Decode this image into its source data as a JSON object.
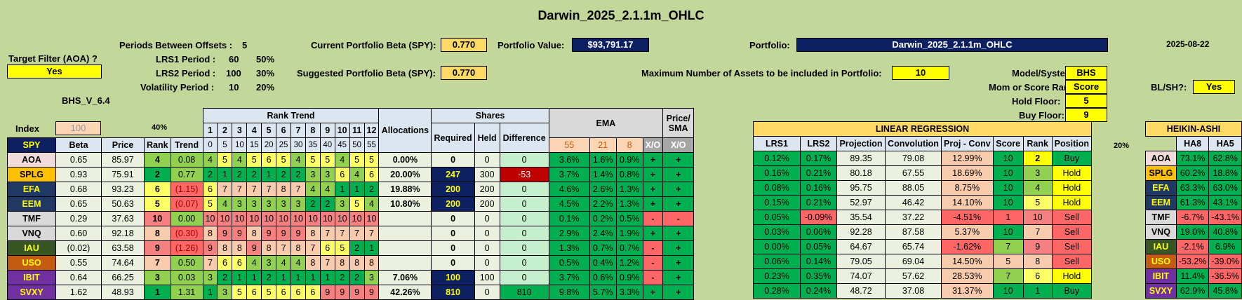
{
  "title": "Darwin_2025_2.1.1m_OHLC",
  "date": "2025-08-22",
  "version": "BHS_V_6.4",
  "target_filter": {
    "label": "Target Filter (AOA) ?",
    "value": "Yes"
  },
  "params": {
    "periods_between_offsets_label": "Periods Between Offsets :",
    "periods_between_offsets": "5",
    "lrs1_label": "LRS1 Period :",
    "lrs1_period": "60",
    "lrs1_pct": "50%",
    "lrs2_label": "LRS2 Period :",
    "lrs2_period": "100",
    "lrs2_pct": "30%",
    "vol_label": "Volatility Period :",
    "vol_period": "10",
    "vol_pct": "20%"
  },
  "beta": {
    "current_label": "Current Portfolio Beta (SPY):",
    "current": "0.770",
    "suggested_label": "Suggested Portfolio Beta (SPY):",
    "suggested": "0.770"
  },
  "portfolio_value": {
    "label": "Portfolio Value:",
    "value": "$93,791.17"
  },
  "portfolio": {
    "label": "Portfolio:",
    "value": "Darwin_2025_2.1.1m_OHLC"
  },
  "max_assets": {
    "label": "Maximum Number of Assets to be included in Portfolio:",
    "value": "10"
  },
  "settings": {
    "model_label": "Model/System?:",
    "model": "BHS",
    "rank_label": "Mom or Score Rank?:",
    "rank": "Score",
    "hold_label": "Hold Floor:",
    "hold": "5",
    "buy_label": "Buy Floor:",
    "buy": "9",
    "blsh_label": "BL/SH?:",
    "blsh": "Yes"
  },
  "headers": {
    "index": "Index",
    "index_val": "100",
    "pct40": "40%",
    "rank_trend": "Rank Trend",
    "allocations": "Allocations",
    "shares": "Shares",
    "required": "Required",
    "held": "Held",
    "difference": "Difference",
    "ema": "EMA",
    "price_sma": "Price/ SMA",
    "linreg": "LINEAR REGRESSION",
    "heikin": "HEIKIN-ASHI",
    "spy": "SPY",
    "beta": "Beta",
    "price": "Price",
    "rank": "Rank",
    "trend": "Trend",
    "ema55": "55",
    "ema21": "21",
    "ema8": "8",
    "xo": "X/O",
    "lrs1": "LRS1",
    "lrs2": "LRS2",
    "projection": "Projection",
    "convolution": "Convolution",
    "projconv": "Proj - Conv",
    "score": "Score",
    "position": "Position",
    "pct20": "20%",
    "ha8": "HA8",
    "ha5": "HA5",
    "rt_nums": [
      "1",
      "2",
      "3",
      "4",
      "5",
      "6",
      "7",
      "8",
      "9",
      "10",
      "11",
      "12"
    ],
    "rt_offsets": [
      "0",
      "5",
      "10",
      "15",
      "20",
      "25",
      "30",
      "35",
      "40",
      "45",
      "50",
      "55"
    ]
  },
  "rows": [
    {
      "sym": "AOA",
      "beta": "0.65",
      "price": "85.97",
      "rank": "4",
      "trend": "0.08",
      "rt": [
        "4",
        "5",
        "4",
        "5",
        "6",
        "5",
        "4",
        "5",
        "5",
        "4",
        "5",
        "5"
      ],
      "alloc": "0.00%",
      "req": "0",
      "held": "0",
      "diff": "0",
      "e55": "3.6%",
      "e21": "1.6%",
      "e8": "0.9%",
      "xo1": "+",
      "xo2": "+",
      "lrs1": "0.12%",
      "lrs2": "0.17%",
      "proj": "89.35",
      "conv": "79.08",
      "pc": "12.99%",
      "score": "10",
      "rk": "2",
      "pos": "Buy",
      "ha8": "73.1%",
      "ha5": "62.8%"
    },
    {
      "sym": "SPLG",
      "beta": "0.93",
      "price": "75.91",
      "rank": "2",
      "trend": "0.77",
      "rt": [
        "2",
        "1",
        "2",
        "2",
        "1",
        "2",
        "2",
        "3",
        "3",
        "6",
        "4",
        "6"
      ],
      "alloc": "20.00%",
      "req": "247",
      "held": "300",
      "diff": "-53",
      "e55": "3.7%",
      "e21": "1.4%",
      "e8": "0.8%",
      "xo1": "+",
      "xo2": "+",
      "lrs1": "0.16%",
      "lrs2": "0.21%",
      "proj": "80.18",
      "conv": "67.55",
      "pc": "18.69%",
      "score": "10",
      "rk": "3",
      "pos": "Hold",
      "ha8": "60.2%",
      "ha5": "18.8%"
    },
    {
      "sym": "EFA",
      "beta": "0.68",
      "price": "93.23",
      "rank": "6",
      "trend": "(1.15)",
      "rt": [
        "6",
        "7",
        "7",
        "7",
        "7",
        "8",
        "7",
        "4",
        "4",
        "1",
        "1",
        "2"
      ],
      "alloc": "19.88%",
      "req": "200",
      "held": "200",
      "diff": "0",
      "e55": "4.6%",
      "e21": "2.6%",
      "e8": "1.3%",
      "xo1": "+",
      "xo2": "+",
      "lrs1": "0.08%",
      "lrs2": "0.16%",
      "proj": "95.75",
      "conv": "88.05",
      "pc": "8.75%",
      "score": "10",
      "rk": "4",
      "pos": "Hold",
      "ha8": "63.3%",
      "ha5": "63.0%"
    },
    {
      "sym": "EEM",
      "beta": "0.65",
      "price": "50.63",
      "rank": "5",
      "trend": "(0.07)",
      "rt": [
        "5",
        "4",
        "3",
        "3",
        "3",
        "3",
        "3",
        "2",
        "2",
        "3",
        "5",
        "4"
      ],
      "alloc": "10.80%",
      "req": "200",
      "held": "200",
      "diff": "0",
      "e55": "4.5%",
      "e21": "2.2%",
      "e8": "1.3%",
      "xo1": "+",
      "xo2": "+",
      "lrs1": "0.15%",
      "lrs2": "0.21%",
      "proj": "52.97",
      "conv": "46.42",
      "pc": "14.10%",
      "score": "10",
      "rk": "5",
      "pos": "Hold",
      "ha8": "61.3%",
      "ha5": "43.1%"
    },
    {
      "sym": "TMF",
      "beta": "0.29",
      "price": "37.63",
      "rank": "10",
      "trend": "0.00",
      "rt": [
        "10",
        "10",
        "10",
        "10",
        "10",
        "10",
        "10",
        "10",
        "10",
        "10",
        "10",
        "10"
      ],
      "alloc": "",
      "req": "0",
      "held": "0",
      "diff": "0",
      "e55": "0.1%",
      "e21": "0.2%",
      "e8": "0.5%",
      "xo1": "-",
      "xo2": "-",
      "lrs1": "0.05%",
      "lrs2": "-0.09%",
      "proj": "35.54",
      "conv": "37.22",
      "pc": "-4.51%",
      "score": "1",
      "rk": "10",
      "pos": "Sell",
      "ha8": "-6.7%",
      "ha5": "-43.1%"
    },
    {
      "sym": "VNQ",
      "beta": "0.60",
      "price": "92.18",
      "rank": "8",
      "trend": "(0.30)",
      "rt": [
        "8",
        "9",
        "9",
        "8",
        "9",
        "9",
        "9",
        "8",
        "7",
        "7",
        "7",
        "7"
      ],
      "alloc": "",
      "req": "0",
      "held": "0",
      "diff": "0",
      "e55": "2.9%",
      "e21": "2.4%",
      "e8": "1.9%",
      "xo1": "+",
      "xo2": "+",
      "lrs1": "0.03%",
      "lrs2": "0.06%",
      "proj": "92.28",
      "conv": "87.58",
      "pc": "5.37%",
      "score": "10",
      "rk": "7",
      "pos": "Sell",
      "ha8": "19.0%",
      "ha5": "40.8%"
    },
    {
      "sym": "IAU",
      "beta": "(0.02)",
      "price": "63.58",
      "rank": "9",
      "trend": "(1.26)",
      "rt": [
        "9",
        "8",
        "8",
        "9",
        "8",
        "7",
        "8",
        "7",
        "6",
        "5",
        "2",
        "1"
      ],
      "alloc": "",
      "req": "0",
      "held": "0",
      "diff": "0",
      "e55": "1.3%",
      "e21": "0.7%",
      "e8": "0.7%",
      "xo1": "-",
      "xo2": "+",
      "lrs1": "0.00%",
      "lrs2": "0.05%",
      "proj": "64.67",
      "conv": "65.74",
      "pc": "-1.62%",
      "score": "7",
      "rk": "9",
      "pos": "Sell",
      "ha8": "-2.1%",
      "ha5": "6.9%"
    },
    {
      "sym": "USO",
      "beta": "0.55",
      "price": "74.64",
      "rank": "7",
      "trend": "0.50",
      "rt": [
        "7",
        "6",
        "6",
        "4",
        "3",
        "4",
        "4",
        "8",
        "7",
        "8",
        "8",
        "8"
      ],
      "alloc": "",
      "req": "0",
      "held": "0",
      "diff": "0",
      "e55": "0.5%",
      "e21": "0.4%",
      "e8": "1.2%",
      "xo1": "-",
      "xo2": "+",
      "lrs1": "0.06%",
      "lrs2": "0.14%",
      "proj": "79.05",
      "conv": "69.04",
      "pc": "14.50%",
      "score": "5",
      "rk": "8",
      "pos": "Sell",
      "ha8": "-53.2%",
      "ha5": "-39.0%"
    },
    {
      "sym": "IBIT",
      "beta": "0.64",
      "price": "66.25",
      "rank": "3",
      "trend": "0.03",
      "rt": [
        "3",
        "2",
        "1",
        "1",
        "2",
        "1",
        "1",
        "1",
        "1",
        "2",
        "2",
        "3"
      ],
      "alloc": "7.06%",
      "req": "100",
      "held": "100",
      "diff": "0",
      "e55": "3.7%",
      "e21": "0.6%",
      "e8": "0.9%",
      "xo1": "-",
      "xo2": "+",
      "lrs1": "0.23%",
      "lrs2": "0.35%",
      "proj": "74.07",
      "conv": "57.62",
      "pc": "28.53%",
      "score": "7",
      "rk": "6",
      "pos": "Hold",
      "ha8": "11.4%",
      "ha5": "-36.5%"
    },
    {
      "sym": "SVXY",
      "beta": "1.62",
      "price": "48.93",
      "rank": "1",
      "trend": "1.31",
      "rt": [
        "1",
        "3",
        "5",
        "6",
        "5",
        "6",
        "6",
        "6",
        "9",
        "9",
        "9",
        "9"
      ],
      "alloc": "42.26%",
      "req": "810",
      "held": "0",
      "diff": "810",
      "e55": "9.8%",
      "e21": "5.7%",
      "e8": "3.3%",
      "xo1": "+",
      "xo2": "+",
      "lrs1": "0.28%",
      "lrs2": "0.24%",
      "proj": "48.72",
      "conv": "37.08",
      "pc": "31.37%",
      "score": "10",
      "rk": "1",
      "pos": "Buy",
      "ha8": "62.9%",
      "ha5": "45.8%"
    }
  ],
  "sym_colors": {
    "AOA": "#f2dcdb",
    "SPLG": "#ffc000",
    "EFA": "#1f3864",
    "EEM": "#1f3864",
    "TMF": "#d9d9d9",
    "VNQ": "#d9d9d9",
    "IAU": "#375623",
    "USO": "#c55a11",
    "IBIT": "#7030a0",
    "SVXY": "#7030a0"
  }
}
